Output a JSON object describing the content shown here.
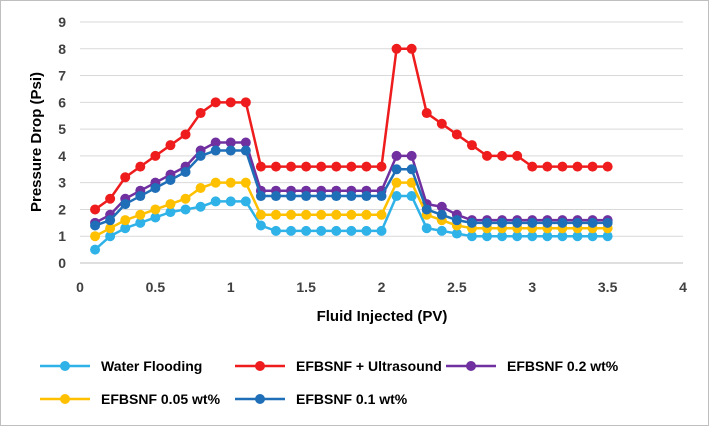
{
  "chart_data": {
    "type": "line",
    "xlabel": "Fluid Injected (PV)",
    "ylabel": "Pressure Drop (Psi)",
    "xlim": [
      0,
      4
    ],
    "ylim": [
      0,
      9
    ],
    "x_ticks": [
      "0",
      "0.5",
      "1",
      "1.5",
      "2",
      "2.5",
      "3",
      "3.5",
      "4"
    ],
    "y_ticks": [
      "0",
      "1",
      "2",
      "3",
      "4",
      "5",
      "6",
      "7",
      "8",
      "9"
    ],
    "grid": "horizontal",
    "legend": "bottom",
    "x": [
      0.1,
      0.2,
      0.3,
      0.4,
      0.5,
      0.6,
      0.7,
      0.8,
      0.9,
      1.0,
      1.1,
      1.2,
      1.3,
      1.4,
      1.5,
      1.6,
      1.7,
      1.8,
      1.9,
      2.0,
      2.1,
      2.2,
      2.3,
      2.4,
      2.5,
      2.6,
      2.7,
      2.8,
      2.9,
      3.0,
      3.1,
      3.2,
      3.3,
      3.4,
      3.5
    ],
    "series": [
      {
        "name": "Water Flooding",
        "color": "#2fb2e8",
        "values": [
          0.5,
          1.0,
          1.3,
          1.5,
          1.7,
          1.9,
          2.0,
          2.1,
          2.3,
          2.3,
          2.3,
          1.4,
          1.2,
          1.2,
          1.2,
          1.2,
          1.2,
          1.2,
          1.2,
          1.2,
          2.5,
          2.5,
          1.3,
          1.2,
          1.1,
          1.0,
          1.0,
          1.0,
          1.0,
          1.0,
          1.0,
          1.0,
          1.0,
          1.0,
          1.0
        ]
      },
      {
        "name": "EFBSNF + Ultrasound",
        "color": "#ee1c1c",
        "values": [
          2.0,
          2.4,
          3.2,
          3.6,
          4.0,
          4.4,
          4.8,
          5.6,
          6.0,
          6.0,
          6.0,
          3.6,
          3.6,
          3.6,
          3.6,
          3.6,
          3.6,
          3.6,
          3.6,
          3.6,
          8.0,
          8.0,
          5.6,
          5.2,
          4.8,
          4.4,
          4.0,
          4.0,
          4.0,
          3.6,
          3.6,
          3.6,
          3.6,
          3.6,
          3.6
        ]
      },
      {
        "name": "EFBSNF 0.2 wt%",
        "color": "#7030a0",
        "values": [
          1.5,
          1.8,
          2.4,
          2.7,
          3.0,
          3.3,
          3.6,
          4.2,
          4.5,
          4.5,
          4.5,
          2.7,
          2.7,
          2.7,
          2.7,
          2.7,
          2.7,
          2.7,
          2.7,
          2.7,
          4.0,
          4.0,
          2.2,
          2.1,
          1.8,
          1.6,
          1.6,
          1.6,
          1.6,
          1.6,
          1.6,
          1.6,
          1.6,
          1.6,
          1.6
        ]
      },
      {
        "name": "EFBSNF 0.05 wt%",
        "color": "#ffc000",
        "values": [
          1.0,
          1.3,
          1.6,
          1.8,
          2.0,
          2.2,
          2.4,
          2.8,
          3.0,
          3.0,
          3.0,
          1.8,
          1.8,
          1.8,
          1.8,
          1.8,
          1.8,
          1.8,
          1.8,
          1.8,
          3.0,
          3.0,
          1.8,
          1.6,
          1.4,
          1.3,
          1.3,
          1.3,
          1.3,
          1.3,
          1.3,
          1.3,
          1.3,
          1.3,
          1.3
        ]
      },
      {
        "name": "EFBSNF 0.1 wt%",
        "color": "#1f6fb8",
        "values": [
          1.4,
          1.6,
          2.2,
          2.5,
          2.8,
          3.1,
          3.4,
          4.0,
          4.2,
          4.2,
          4.2,
          2.5,
          2.5,
          2.5,
          2.5,
          2.5,
          2.5,
          2.5,
          2.5,
          2.5,
          3.5,
          3.5,
          2.0,
          1.8,
          1.6,
          1.5,
          1.5,
          1.5,
          1.5,
          1.5,
          1.5,
          1.5,
          1.5,
          1.5,
          1.5
        ]
      }
    ]
  }
}
